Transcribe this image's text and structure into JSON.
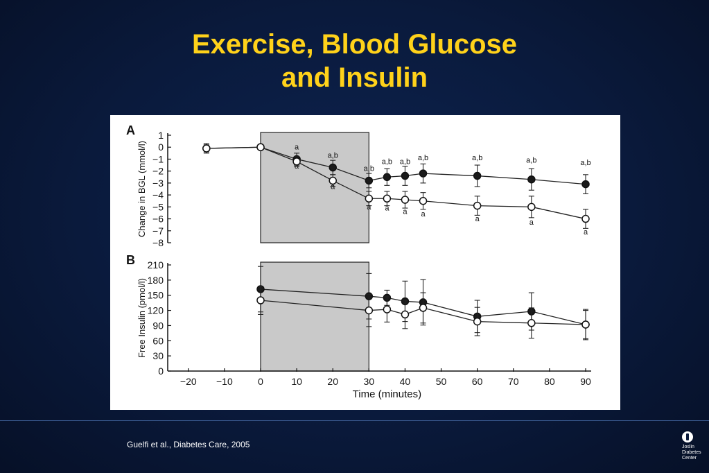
{
  "slide": {
    "title_line1": "Exercise, Blood Glucose",
    "title_line2": "and Insulin",
    "citation": "Guelfi et al., Diabetes Care, 2005",
    "logo_lines": [
      "Joslin",
      "Diabetes",
      "Center"
    ]
  },
  "colors": {
    "background": "#0a1a3c",
    "title": "#ffd21a",
    "exercise_shading": "#c9c9c9"
  },
  "chart_data": [
    {
      "panel_label": "A",
      "type": "line",
      "ylabel": "Change in BGL (mmol/l)",
      "ylim": [
        -8,
        1
      ],
      "yticks": [
        1,
        0,
        -1,
        -2,
        -3,
        -4,
        -5,
        -6,
        -7,
        -8
      ],
      "xlim": [
        -20,
        90
      ],
      "exercise_period": [
        0,
        30
      ],
      "series": [
        {
          "marker": "filled",
          "x": [
            -15,
            0,
            10,
            20,
            30,
            35,
            40,
            45,
            60,
            75,
            90
          ],
          "y": [
            -0.1,
            0,
            -1.0,
            -1.7,
            -2.8,
            -2.5,
            -2.4,
            -2.2,
            -2.4,
            -2.7,
            -3.1
          ],
          "err": [
            0.4,
            0,
            0.5,
            0.6,
            0.6,
            0.7,
            0.8,
            0.8,
            0.9,
            0.9,
            0.8
          ]
        },
        {
          "marker": "open",
          "x": [
            -15,
            0,
            10,
            20,
            30,
            35,
            40,
            45,
            60,
            75,
            90
          ],
          "y": [
            -0.1,
            0,
            -1.2,
            -2.8,
            -4.3,
            -4.3,
            -4.4,
            -4.5,
            -4.9,
            -5.0,
            -6.0
          ],
          "err": [
            0.3,
            0,
            0.4,
            0.5,
            0.6,
            0.6,
            0.7,
            0.7,
            0.8,
            0.9,
            0.8
          ]
        }
      ],
      "annotations": [
        {
          "x": 10,
          "y": -0.2,
          "text": "a"
        },
        {
          "x": 10,
          "y": -1.8,
          "text": "a"
        },
        {
          "x": 20,
          "y": -0.9,
          "text": "a,b"
        },
        {
          "x": 20,
          "y": -3.5,
          "text": "a"
        },
        {
          "x": 30,
          "y": -2.0,
          "text": "a,b"
        },
        {
          "x": 35,
          "y": -1.4,
          "text": "a,b"
        },
        {
          "x": 40,
          "y": -1.4,
          "text": "a,b"
        },
        {
          "x": 45,
          "y": -1.1,
          "text": "a,b"
        },
        {
          "x": 60,
          "y": -1.1,
          "text": "a,b"
        },
        {
          "x": 75,
          "y": -1.3,
          "text": "a,b"
        },
        {
          "x": 90,
          "y": -1.5,
          "text": "a,b"
        },
        {
          "x": 30,
          "y": -5.2,
          "text": "a"
        },
        {
          "x": 35,
          "y": -5.3,
          "text": "a"
        },
        {
          "x": 40,
          "y": -5.6,
          "text": "a"
        },
        {
          "x": 45,
          "y": -5.8,
          "text": "a"
        },
        {
          "x": 60,
          "y": -6.2,
          "text": "a"
        },
        {
          "x": 75,
          "y": -6.5,
          "text": "a"
        },
        {
          "x": 90,
          "y": -7.3,
          "text": "a"
        }
      ]
    },
    {
      "panel_label": "B",
      "type": "line",
      "ylabel": "Free Insulin (pmol/l)",
      "xlabel": "Time (minutes)",
      "ylim": [
        0,
        210
      ],
      "yticks": [
        210,
        180,
        150,
        120,
        90,
        60,
        30,
        0
      ],
      "xlim": [
        -20,
        90
      ],
      "xticks": [
        -20,
        -10,
        0,
        10,
        20,
        30,
        40,
        50,
        60,
        70,
        80,
        90
      ],
      "xtick_labels": [
        "-20",
        "-10",
        "0",
        "10",
        "20",
        "30",
        "40",
        "50",
        "60",
        "70",
        "80",
        "90"
      ],
      "exercise_period": [
        0,
        30
      ],
      "series": [
        {
          "marker": "filled",
          "x": [
            0,
            30,
            35,
            40,
            45,
            60,
            75,
            90
          ],
          "y": [
            162,
            148,
            145,
            138,
            136,
            108,
            118,
            92
          ],
          "err": [
            45,
            45,
            15,
            40,
            45,
            32,
            37,
            30
          ]
        },
        {
          "marker": "open",
          "x": [
            0,
            30,
            35,
            40,
            45,
            60,
            75,
            90
          ],
          "y": [
            140,
            120,
            122,
            112,
            125,
            98,
            95,
            92
          ],
          "err": [
            28,
            32,
            25,
            28,
            30,
            28,
            30,
            28
          ]
        }
      ]
    }
  ]
}
